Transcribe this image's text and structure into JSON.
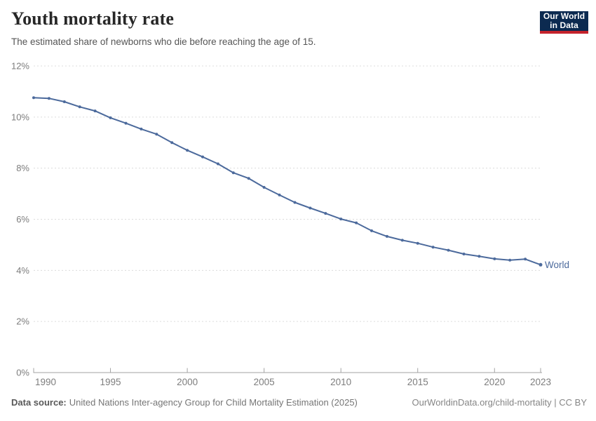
{
  "header": {
    "title": "Youth mortality rate",
    "subtitle": "The estimated share of newborns who die before reaching the age of 15.",
    "logo": {
      "line1": "Our World",
      "line2": "in Data"
    }
  },
  "colors": {
    "line": "#4c6a9c",
    "end_label": "#4c6a9c",
    "logo_bg": "#0c2a50",
    "logo_red": "#c4232c",
    "grid": "#dcdcdc",
    "axis": "#a3a3a3",
    "tick_label": "#7d7d7d"
  },
  "chart_data": {
    "type": "line",
    "title": "Youth mortality rate",
    "subtitle": "The estimated share of newborns who die before reaching the age of 15.",
    "xlabel": "",
    "ylabel": "",
    "xlim": [
      1990,
      2023
    ],
    "ylim": [
      0,
      12
    ],
    "grid": "horizontal-dashed",
    "legend_position": "end-of-line-label",
    "x_ticks": [
      1990,
      1995,
      2000,
      2005,
      2010,
      2015,
      2020,
      2023
    ],
    "y_ticks_percent": [
      0,
      2,
      4,
      6,
      8,
      10,
      12
    ],
    "y_tick_suffix": "%",
    "series": [
      {
        "name": "World",
        "x": [
          1990,
          1991,
          1992,
          1993,
          1994,
          1995,
          1996,
          1997,
          1998,
          1999,
          2000,
          2001,
          2002,
          2003,
          2004,
          2005,
          2006,
          2007,
          2008,
          2009,
          2010,
          2011,
          2012,
          2013,
          2014,
          2015,
          2016,
          2017,
          2018,
          2019,
          2020,
          2021,
          2022,
          2023
        ],
        "values": [
          10.76,
          10.73,
          10.6,
          10.4,
          10.24,
          9.97,
          9.76,
          9.53,
          9.33,
          9.0,
          8.7,
          8.44,
          8.17,
          7.82,
          7.6,
          7.25,
          6.95,
          6.66,
          6.44,
          6.23,
          6.01,
          5.86,
          5.55,
          5.33,
          5.18,
          5.06,
          4.91,
          4.79,
          4.64,
          4.55,
          4.45,
          4.4,
          4.44,
          4.22
        ]
      }
    ]
  },
  "footer": {
    "source_label": "Data source:",
    "source_text": "United Nations Inter-agency Group for Child Mortality Estimation (2025)",
    "link_text": "OurWorldinData.org/child-mortality | CC BY"
  }
}
